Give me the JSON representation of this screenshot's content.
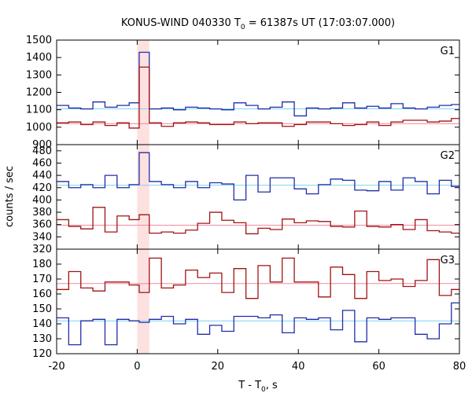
{
  "title_prefix": "KONUS-WIND 040330 T",
  "title_sub": "0",
  "title_suffix": " = 61387s UT (17:03:07.000)",
  "ylabel": "counts / sec",
  "xlabel_prefix": "T - T",
  "xlabel_sub": "0",
  "xlabel_suffix": ", s",
  "colors": {
    "blue": "#1f2ea8",
    "red": "#a01414",
    "lightblue": "#7fd4f0",
    "pink": "#f08aa0",
    "shade": "#fde0e0"
  },
  "chart_data": [
    {
      "type": "line",
      "panel_label": "G1",
      "xlim": [
        -20,
        80
      ],
      "ylim": [
        900,
        1500
      ],
      "yticks": [
        900,
        1000,
        1100,
        1200,
        1300,
        1400,
        1500
      ],
      "bin_edges": [
        -20,
        -17,
        -14,
        -11,
        -8,
        -5,
        -2,
        0.5,
        3,
        6,
        9,
        12,
        15,
        18,
        21,
        24,
        27,
        30,
        33,
        36,
        39,
        42,
        45,
        48,
        51,
        54,
        57,
        60,
        63,
        66,
        69,
        72,
        75,
        78,
        80
      ],
      "series": [
        {
          "color": "blue",
          "values": [
            1125,
            1110,
            1105,
            1145,
            1115,
            1125,
            1140,
            1430,
            1105,
            1110,
            1100,
            1115,
            1110,
            1105,
            1100,
            1140,
            1125,
            1105,
            1115,
            1145,
            1065,
            1110,
            1105,
            1110,
            1140,
            1110,
            1120,
            1110,
            1135,
            1110,
            1105,
            1115,
            1125,
            1130
          ]
        },
        {
          "color": "red",
          "values": [
            1025,
            1030,
            1015,
            1030,
            1010,
            1025,
            995,
            1345,
            1025,
            1005,
            1025,
            1030,
            1025,
            1015,
            1015,
            1030,
            1020,
            1025,
            1025,
            1005,
            1015,
            1030,
            1030,
            1020,
            1010,
            1015,
            1030,
            1010,
            1030,
            1040,
            1040,
            1030,
            1035,
            1050
          ]
        }
      ],
      "levels": [
        {
          "color": "lightblue",
          "value": 1105
        },
        {
          "color": "pink",
          "value": 1020
        }
      ]
    },
    {
      "type": "line",
      "panel_label": "G2",
      "xlim": [
        -20,
        80
      ],
      "ylim": [
        320,
        490
      ],
      "yticks": [
        320,
        340,
        360,
        380,
        400,
        420,
        440,
        460,
        480
      ],
      "bin_edges": [
        -20,
        -17,
        -14,
        -11,
        -8,
        -5,
        -2,
        0.5,
        3,
        6,
        9,
        12,
        15,
        18,
        21,
        24,
        27,
        30,
        33,
        36,
        39,
        42,
        45,
        48,
        51,
        54,
        57,
        60,
        63,
        66,
        69,
        72,
        75,
        78,
        80
      ],
      "series": [
        {
          "color": "blue",
          "values": [
            430,
            420,
            425,
            420,
            440,
            420,
            425,
            477,
            430,
            425,
            420,
            430,
            420,
            428,
            426,
            400,
            440,
            413,
            436,
            436,
            418,
            410,
            425,
            434,
            432,
            416,
            415,
            430,
            416,
            436,
            430,
            410,
            432,
            422
          ]
        },
        {
          "color": "red",
          "values": [
            368,
            357,
            353,
            388,
            348,
            374,
            368,
            376,
            346,
            348,
            346,
            351,
            362,
            380,
            367,
            363,
            345,
            354,
            352,
            369,
            363,
            366,
            365,
            357,
            356,
            382,
            357,
            356,
            360,
            352,
            368,
            350,
            348,
            346
          ]
        }
      ],
      "levels": [
        {
          "color": "lightblue",
          "value": 424
        },
        {
          "color": "pink",
          "value": 359
        }
      ]
    },
    {
      "type": "line",
      "panel_label": "G3",
      "xlim": [
        -20,
        80
      ],
      "ylim": [
        120,
        190
      ],
      "yticks": [
        120,
        130,
        140,
        150,
        160,
        170,
        180
      ],
      "bin_edges": [
        -20,
        -17,
        -14,
        -11,
        -8,
        -5,
        -2,
        0.5,
        3,
        6,
        9,
        12,
        15,
        18,
        21,
        24,
        27,
        30,
        33,
        36,
        39,
        42,
        45,
        48,
        51,
        54,
        57,
        60,
        63,
        66,
        69,
        72,
        75,
        78,
        80
      ],
      "series": [
        {
          "color": "blue",
          "values": [
            144,
            126,
            142,
            143,
            126,
            143,
            142,
            141,
            143,
            145,
            140,
            143,
            133,
            139,
            135,
            145,
            145,
            144,
            146,
            134,
            144,
            143,
            144,
            136,
            149,
            128,
            144,
            143,
            144,
            144,
            133,
            130,
            140,
            154
          ]
        },
        {
          "color": "red",
          "values": [
            163,
            175,
            164,
            162,
            168,
            168,
            166,
            161,
            184,
            164,
            166,
            176,
            171,
            174,
            161,
            177,
            157,
            179,
            168,
            184,
            168,
            168,
            158,
            178,
            173,
            157,
            175,
            169,
            170,
            165,
            169,
            183,
            159,
            163
          ]
        }
      ],
      "levels": [
        {
          "color": "lightblue",
          "value": 142
        },
        {
          "color": "pink",
          "value": 167
        }
      ]
    }
  ],
  "x_axis": {
    "ticks": [
      -20,
      0,
      20,
      40,
      60,
      80
    ]
  },
  "shaded_interval": [
    0,
    3
  ]
}
